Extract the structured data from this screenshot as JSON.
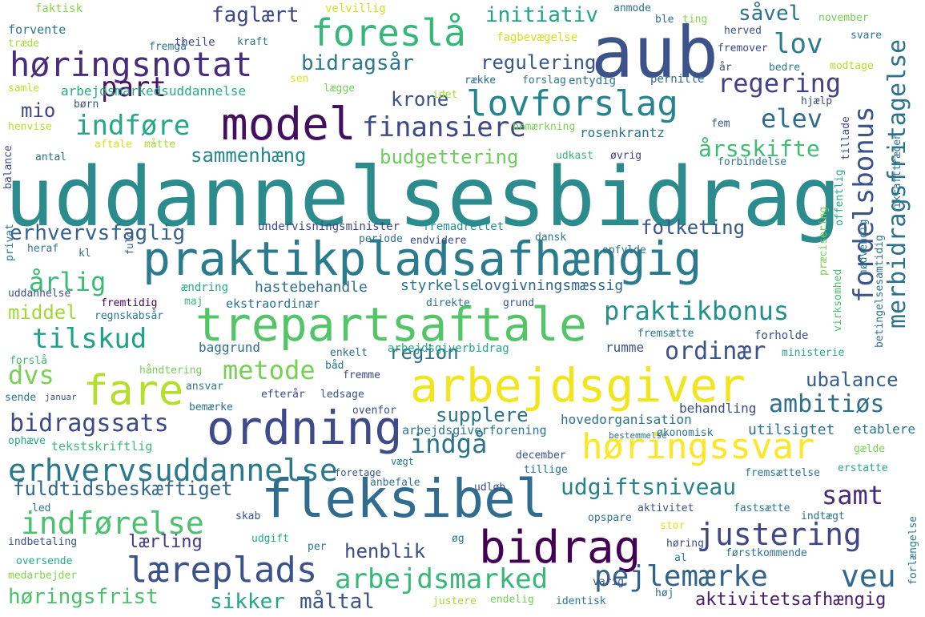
{
  "words": [
    {
      "text": "uddannelsesbidrag",
      "color": "#2c8c8d"
    },
    {
      "text": "aub",
      "color": "#3b528b"
    },
    {
      "text": "praktikpladsafhængig",
      "color": "#2a7b8e"
    },
    {
      "text": "trepartsaftale",
      "color": "#53c567"
    },
    {
      "text": "arbejdsgiver",
      "color": "#f2e51d"
    },
    {
      "text": "fleksibel",
      "color": "#2f6c8e"
    },
    {
      "text": "ordning",
      "color": "#3e4a89"
    },
    {
      "text": "bidrag",
      "color": "#440154"
    },
    {
      "text": "model",
      "color": "#440f5f"
    },
    {
      "text": "høringsnotat",
      "color": "#472d7b"
    },
    {
      "text": "foreslå",
      "color": "#35b779"
    },
    {
      "text": "lovforslag",
      "color": "#25858e"
    },
    {
      "text": "lov",
      "color": "#287d8e"
    },
    {
      "text": "finansiere",
      "color": "#3e4989"
    },
    {
      "text": "fare",
      "color": "#b5de2b"
    },
    {
      "text": "høringssvar",
      "color": "#fde725"
    },
    {
      "text": "erhvervsuddannelse",
      "color": "#2a788e"
    },
    {
      "text": "læreplads",
      "color": "#3b528b"
    },
    {
      "text": "indførelse",
      "color": "#4ac16d"
    },
    {
      "text": "justering",
      "color": "#3f4788"
    },
    {
      "text": "pejlemærke",
      "color": "#33638d"
    },
    {
      "text": "veu",
      "color": "#31688e"
    },
    {
      "text": "arbejdsmarked",
      "color": "#37b878"
    },
    {
      "text": "merbidragsfritagelse",
      "color": "#2c728e"
    },
    {
      "text": "fordelsbonus",
      "color": "#3b528b"
    },
    {
      "text": "regering",
      "color": "#424086"
    },
    {
      "text": "elev",
      "color": "#2f6c8e"
    },
    {
      "text": "indføre",
      "color": "#22a884"
    },
    {
      "text": "part",
      "color": "#471164"
    },
    {
      "text": "praktikbonus",
      "color": "#21918c"
    },
    {
      "text": "ordinær",
      "color": "#3b528b"
    },
    {
      "text": "metode",
      "color": "#75d054"
    },
    {
      "text": "tilskud",
      "color": "#1fa187"
    },
    {
      "text": "dvs",
      "color": "#7ad151"
    },
    {
      "text": "bidragssats",
      "color": "#3e4989"
    },
    {
      "text": "indgå",
      "color": "#2b748e"
    },
    {
      "text": "udgiftsniveau",
      "color": "#27808e"
    },
    {
      "text": "samt",
      "color": "#472c7a"
    },
    {
      "text": "ambitiøs",
      "color": "#2e6f8e"
    },
    {
      "text": "årlig",
      "color": "#3aba76"
    },
    {
      "text": "erhvervsfaglig",
      "color": "#34618d"
    },
    {
      "text": "bidragsår",
      "color": "#2a778e"
    },
    {
      "text": "initiativ",
      "color": "#20a386"
    },
    {
      "text": "regulering",
      "color": "#39568c"
    },
    {
      "text": "faglært",
      "color": "#414487"
    },
    {
      "text": "såvel",
      "color": "#2d718e"
    },
    {
      "text": "krone",
      "color": "#3c508b"
    },
    {
      "text": "årsskifte",
      "color": "#40bd72"
    },
    {
      "text": "sammenhæng",
      "color": "#24878e"
    },
    {
      "text": "budgettering",
      "color": "#6ccd5a"
    },
    {
      "text": "folketing",
      "color": "#38588c"
    },
    {
      "text": "region",
      "color": "#2e6e8e"
    },
    {
      "text": "fuldtidsbeskæftiget",
      "color": "#31688e"
    },
    {
      "text": "ubalance",
      "color": "#35608d"
    },
    {
      "text": "supplere",
      "color": "#2c738e"
    },
    {
      "text": "middel",
      "color": "#a0da39"
    },
    {
      "text": "henblik",
      "color": "#3d4d8a"
    },
    {
      "text": "lærling",
      "color": "#443a83"
    },
    {
      "text": "sikker",
      "color": "#22a785"
    },
    {
      "text": "måltal",
      "color": "#3a548c"
    },
    {
      "text": "høringsfrist",
      "color": "#4ac16d"
    },
    {
      "text": "aktivitetsafhængig",
      "color": "#481f70"
    },
    {
      "text": "mio",
      "color": "#3f4889"
    },
    {
      "text": "rosenkrantz",
      "color": "#2a788e"
    },
    {
      "text": "undervisningsminister",
      "color": "#404588"
    },
    {
      "text": "fremadrettet",
      "color": "#21918c"
    },
    {
      "text": "styrkelse",
      "color": "#2a768e"
    },
    {
      "text": "lovgivningsmæssig",
      "color": "#32658e"
    },
    {
      "text": "hastebehandle",
      "color": "#2d708e"
    },
    {
      "text": "ekstraordinær",
      "color": "#2c728e"
    },
    {
      "text": "arbejdsgiverbidrag",
      "color": "#22a884"
    },
    {
      "text": "baggrund",
      "color": "#2e6e8e"
    },
    {
      "text": "rumme",
      "color": "#3b528b"
    },
    {
      "text": "hovedorganisation",
      "color": "#2c738e"
    },
    {
      "text": "arbejdsgiverforening",
      "color": "#2a788e"
    },
    {
      "text": "utilsigtet",
      "color": "#2c728e"
    },
    {
      "text": "etablere",
      "color": "#2a788e"
    },
    {
      "text": "behandling",
      "color": "#3e4c8a"
    },
    {
      "text": "tekstskriftlig",
      "color": "#3aba76"
    },
    {
      "text": "arbejdsmarkedsuddannelse",
      "color": "#25ac82"
    },
    {
      "text": "fagbevægelse",
      "color": "#d2e21b"
    },
    {
      "text": "entydig",
      "color": "#2a788e"
    },
    {
      "text": "pernille",
      "color": "#2f6b8e"
    },
    {
      "text": "bemærkning",
      "color": "#7ad151"
    },
    {
      "text": "udkast",
      "color": "#35b779"
    },
    {
      "text": "øvrig",
      "color": "#433e85"
    },
    {
      "text": "forbindelse",
      "color": "#2a788e"
    },
    {
      "text": "ikrafttræden",
      "color": "#2c738e"
    },
    {
      "text": "tillade",
      "color": "#3e4989"
    },
    {
      "text": "offentlig",
      "color": "#25ac82"
    },
    {
      "text": "nødvendig",
      "color": "#2a788e"
    },
    {
      "text": "præcisering",
      "color": "#75d054"
    },
    {
      "text": "virksomhed",
      "color": "#4ac16d"
    },
    {
      "text": "betingelsesamtidig",
      "color": "#2c728e"
    },
    {
      "text": "ministerie",
      "color": "#22a884"
    },
    {
      "text": "forlængelse",
      "color": "#2a788e"
    },
    {
      "text": "faktisk",
      "color": "#86d549"
    },
    {
      "text": "forvente",
      "color": "#2a788e"
    },
    {
      "text": "træde",
      "color": "#a5db36"
    },
    {
      "text": "fremgå",
      "color": "#2c738e"
    },
    {
      "text": "theile",
      "color": "#3e4989"
    },
    {
      "text": "kraft",
      "color": "#2a788e"
    },
    {
      "text": "velvillig",
      "color": "#d2e21b"
    },
    {
      "text": "anmode",
      "color": "#2c728e"
    },
    {
      "text": "ble",
      "color": "#2f6c8e"
    },
    {
      "text": "ting",
      "color": "#86d549"
    },
    {
      "text": "november",
      "color": "#75d054"
    },
    {
      "text": "herved",
      "color": "#3b528b"
    },
    {
      "text": "svare",
      "color": "#2a788e"
    },
    {
      "text": "fremover",
      "color": "#3e4989"
    },
    {
      "text": "år",
      "color": "#3b528b"
    },
    {
      "text": "bedre",
      "color": "#2a788e"
    },
    {
      "text": "modtage",
      "color": "#b5de2b"
    },
    {
      "text": "samle",
      "color": "#bddf26"
    },
    {
      "text": "sen",
      "color": "#dde318"
    },
    {
      "text": "lægge",
      "color": "#75d054"
    },
    {
      "text": "række",
      "color": "#2f6c8e"
    },
    {
      "text": "forslag",
      "color": "#2a788e"
    },
    {
      "text": "børn",
      "color": "#3b528b"
    },
    {
      "text": "idet",
      "color": "#a5db36"
    },
    {
      "text": "hjælp",
      "color": "#3e4989"
    },
    {
      "text": "henvise",
      "color": "#b5de2b"
    },
    {
      "text": "fem",
      "color": "#3b528b"
    },
    {
      "text": "aftale",
      "color": "#d2e21b"
    },
    {
      "text": "antal",
      "color": "#2c728e"
    },
    {
      "text": "måtte",
      "color": "#a5db36"
    },
    {
      "text": "balance",
      "color": "#3e4989"
    },
    {
      "text": "heraf",
      "color": "#2a788e"
    },
    {
      "text": "kl",
      "color": "#2f6c8e"
    },
    {
      "text": "fuld",
      "color": "#3b528b"
    },
    {
      "text": "privat",
      "color": "#2a788e"
    },
    {
      "text": "periode",
      "color": "#2c728e"
    },
    {
      "text": "endvidere",
      "color": "#3e4989"
    },
    {
      "text": "dansk",
      "color": "#2a788e"
    },
    {
      "text": "opfylde",
      "color": "#2c728e"
    },
    {
      "text": "ændring",
      "color": "#25ac82"
    },
    {
      "text": "uddannelse",
      "color": "#3b528b"
    },
    {
      "text": "fremtidig",
      "color": "#440154"
    },
    {
      "text": "maj",
      "color": "#3aba76"
    },
    {
      "text": "regnskabsår",
      "color": "#2a788e"
    },
    {
      "text": "direkte",
      "color": "#2c728e"
    },
    {
      "text": "grund",
      "color": "#3b528b"
    },
    {
      "text": "fremsætte",
      "color": "#2a788e"
    },
    {
      "text": "forholde",
      "color": "#3b528b"
    },
    {
      "text": "enkelt",
      "color": "#2c728e"
    },
    {
      "text": "forslå",
      "color": "#3aba76"
    },
    {
      "text": "håndtering",
      "color": "#75d054"
    },
    {
      "text": "båd",
      "color": "#2a788e"
    },
    {
      "text": "fremme",
      "color": "#3e4989"
    },
    {
      "text": "sende",
      "color": "#2c728e"
    },
    {
      "text": "januar",
      "color": "#3b528b"
    },
    {
      "text": "ansvar",
      "color": "#2a788e"
    },
    {
      "text": "efterår",
      "color": "#3e4989"
    },
    {
      "text": "ledsage",
      "color": "#3b528b"
    },
    {
      "text": "bemærke",
      "color": "#2c728e"
    },
    {
      "text": "ovenfor",
      "color": "#3e4989"
    },
    {
      "text": "ophæve",
      "color": "#25ac82"
    },
    {
      "text": "bestemmelse",
      "color": "#2a788e"
    },
    {
      "text": "økonomisk",
      "color": "#2c728e"
    },
    {
      "text": "gælde",
      "color": "#7ad151"
    },
    {
      "text": "december",
      "color": "#3b528b"
    },
    {
      "text": "vægt",
      "color": "#2a788e"
    },
    {
      "text": "tillige",
      "color": "#2c728e"
    },
    {
      "text": "erstatte",
      "color": "#25ac82"
    },
    {
      "text": "fremsættelse",
      "color": "#2a788e"
    },
    {
      "text": "foretage",
      "color": "#3b528b"
    },
    {
      "text": "anbefale",
      "color": "#2c728e"
    },
    {
      "text": "udløb",
      "color": "#3e4989"
    },
    {
      "text": "led",
      "color": "#2a788e"
    },
    {
      "text": "skab",
      "color": "#3b528b"
    },
    {
      "text": "opspare",
      "color": "#2c728e"
    },
    {
      "text": "aktivitet",
      "color": "#3b528b"
    },
    {
      "text": "fastsætte",
      "color": "#2a788e"
    },
    {
      "text": "indtægt",
      "color": "#2c728e"
    },
    {
      "text": "stor",
      "color": "#dde318"
    },
    {
      "text": "udgift",
      "color": "#25ac82"
    },
    {
      "text": "øg",
      "color": "#2a788e"
    },
    {
      "text": "indbetaling",
      "color": "#3b528b"
    },
    {
      "text": "per",
      "color": "#2c728e"
    },
    {
      "text": "høring",
      "color": "#3e4989"
    },
    {
      "text": "al",
      "color": "#2a788e"
    },
    {
      "text": "førstkommende",
      "color": "#2c728e"
    },
    {
      "text": "oversende",
      "color": "#25ac82"
    },
    {
      "text": "medarbejder",
      "color": "#86d549"
    },
    {
      "text": "varig",
      "color": "#3b528b"
    },
    {
      "text": "justere",
      "color": "#a5db36"
    },
    {
      "text": "endelig",
      "color": "#75d054"
    },
    {
      "text": "identisk",
      "color": "#2a788e"
    },
    {
      "text": "høj",
      "color": "#2c728e"
    }
  ]
}
